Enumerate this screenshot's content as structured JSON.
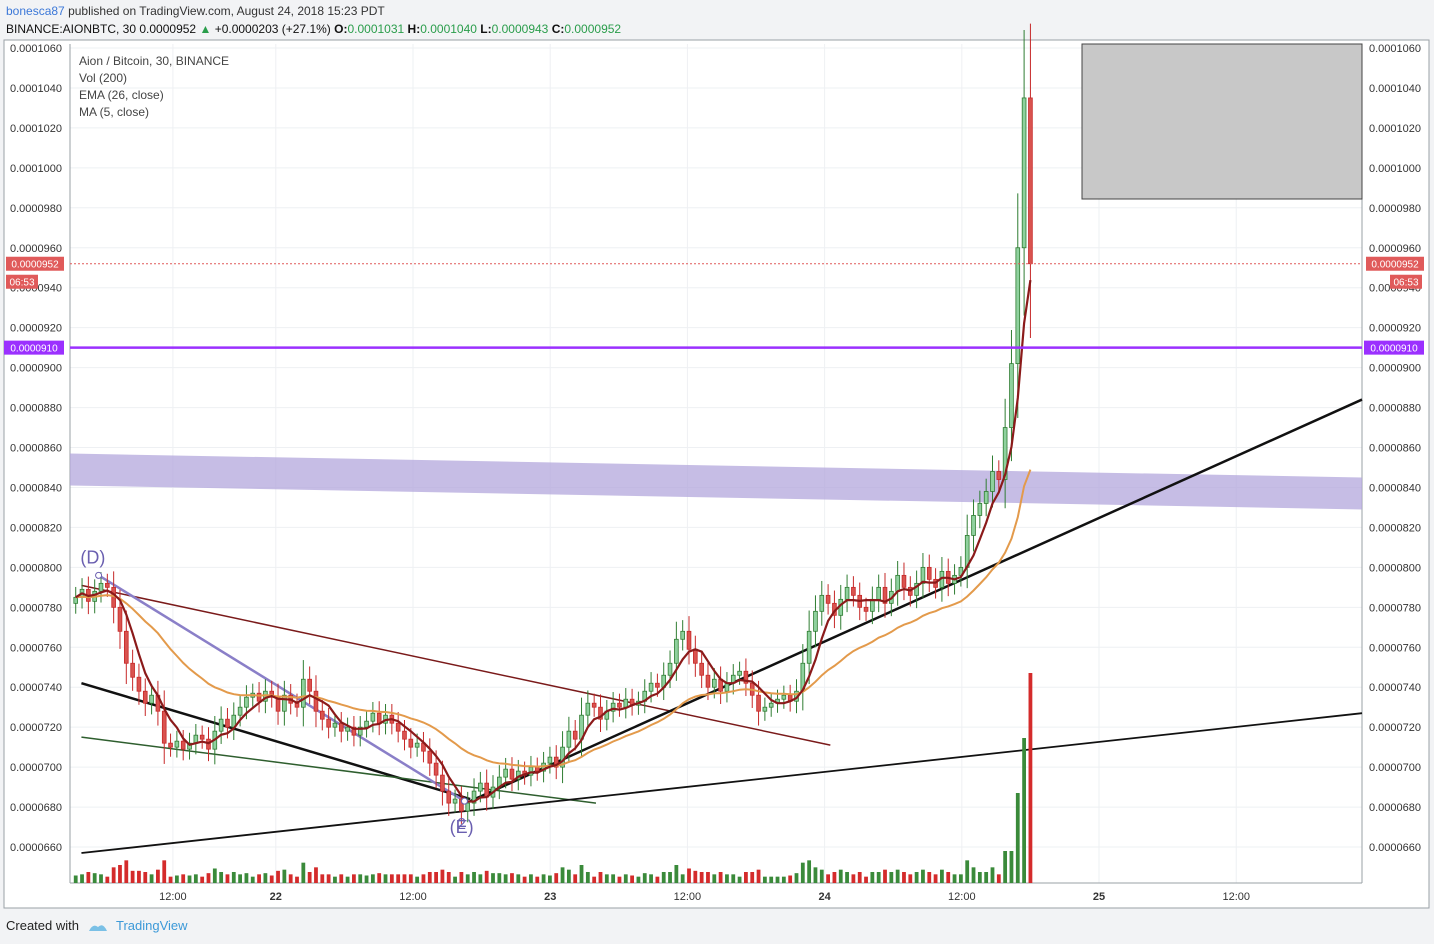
{
  "header": {
    "user": "bonesca87",
    "published": "published on TradingView.com, August 24, 2018 15:23 PDT",
    "symbol": "BINANCE:AIONBTC, 30",
    "price": "0.0000952",
    "change_arrow": "▲",
    "change": "+0.0000203 (+27.1%)",
    "o_label": "O:",
    "o": "0.0001031",
    "h_label": "H:",
    "h": "0.0001040",
    "l_label": "L:",
    "l": "0.0000943",
    "c_label": "C:",
    "c": "0.0000952"
  },
  "legend": {
    "title": "Aion / Bitcoin, 30, BINANCE",
    "vol": "Vol (200)",
    "ema": "EMA (26, close)",
    "ma": "MA (5, close)"
  },
  "footer": {
    "created": "Created with",
    "brand": "TradingView"
  },
  "chart_data": {
    "type": "candlestick",
    "ylim": [
      6.42e-05,
      0.0001062
    ],
    "y_ticks": [
      "0.0000660",
      "0.0000680",
      "0.0000700",
      "0.0000720",
      "0.0000740",
      "0.0000760",
      "0.0000780",
      "0.0000800",
      "0.0000820",
      "0.0000840",
      "0.0000860",
      "0.0000880",
      "0.0000900",
      "0.0000920",
      "0.0000940",
      "0.0000960",
      "0.0000980",
      "0.0001000",
      "0.0001020",
      "0.0001040",
      "0.0001060"
    ],
    "x_ticks": [
      {
        "label": "12:00",
        "t": -18
      },
      {
        "label": "22",
        "t": 0
      },
      {
        "label": "12:00",
        "t": 24
      },
      {
        "label": "23",
        "t": 48
      },
      {
        "label": "12:00",
        "t": 72
      },
      {
        "label": "24",
        "t": 96
      },
      {
        "label": "12:00",
        "t": 120
      },
      {
        "label": "25",
        "t": 144
      },
      {
        "label": "12:00",
        "t": 168
      }
    ],
    "x_range_hours": [
      -36,
      190
    ],
    "current_price_label": "0.0000952",
    "countdown_label": "06:53",
    "level_label": "0.0000910",
    "level_price": 9.1e-05,
    "current_price": 9.52e-05,
    "wave_labels": [
      {
        "text": "(D)",
        "t": -32,
        "y": 8.02e-05
      },
      {
        "text": "(E)",
        "t": 32.5,
        "y": 6.67e-05
      },
      {
        "text": "2",
        "t": 32.5,
        "y": 6.69e-05
      }
    ],
    "closes": [
      7.85e-05,
      7.89e-05,
      7.83e-05,
      7.88e-05,
      7.92e-05,
      7.9e-05,
      7.8e-05,
      7.68e-05,
      7.52e-05,
      7.45e-05,
      7.38e-05,
      7.32e-05,
      7.36e-05,
      7.28e-05,
      7.12e-05,
      7.1e-05,
      7.13e-05,
      7.09e-05,
      7.12e-05,
      7.16e-05,
      7.14e-05,
      7.09e-05,
      7.18e-05,
      7.24e-05,
      7.2e-05,
      7.26e-05,
      7.3e-05,
      7.35e-05,
      7.37e-05,
      7.33e-05,
      7.38e-05,
      7.35e-05,
      7.28e-05,
      7.36e-05,
      7.32e-05,
      7.3e-05,
      7.44e-05,
      7.38e-05,
      7.28e-05,
      7.24e-05,
      7.2e-05,
      7.22e-05,
      7.18e-05,
      7.2e-05,
      7.16e-05,
      7.2e-05,
      7.23e-05,
      7.27e-05,
      7.22e-05,
      7.26e-05,
      7.22e-05,
      7.18e-05,
      7.14e-05,
      7.1e-05,
      7.12e-05,
      7.08e-05,
      7.02e-05,
      6.96e-05,
      6.88e-05,
      6.82e-05,
      6.84e-05,
      6.78e-05,
      6.82e-05,
      6.88e-05,
      6.92e-05,
      6.85e-05,
      6.9e-05,
      6.95e-05,
      6.99e-05,
      6.94e-05,
      6.98e-05,
      6.96e-05,
      7e-05,
      6.98e-05,
      7.02e-05,
      7.05e-05,
      7e-05,
      7.1e-05,
      7.18e-05,
      7.14e-05,
      7.26e-05,
      7.32e-05,
      7.3e-05,
      7.24e-05,
      7.28e-05,
      7.32e-05,
      7.3e-05,
      7.34e-05,
      7.31e-05,
      7.33e-05,
      7.38e-05,
      7.42e-05,
      7.4e-05,
      7.46e-05,
      7.52e-05,
      7.64e-05,
      7.68e-05,
      7.59e-05,
      7.52e-05,
      7.46e-05,
      7.4e-05,
      7.44e-05,
      7.38e-05,
      7.42e-05,
      7.46e-05,
      7.48e-05,
      7.42e-05,
      7.36e-05,
      7.28e-05,
      7.3e-05,
      7.32e-05,
      7.34e-05,
      7.36e-05,
      7.33e-05,
      7.38e-05,
      7.52e-05,
      7.68e-05,
      7.78e-05,
      7.86e-05,
      7.82e-05,
      7.76e-05,
      7.84e-05,
      7.9e-05,
      7.86e-05,
      7.8e-05,
      7.78e-05,
      7.84e-05,
      7.9e-05,
      7.82e-05,
      7.88e-05,
      7.96e-05,
      7.9e-05,
      7.86e-05,
      7.92e-05,
      8e-05,
      7.94e-05,
      7.9e-05,
      7.98e-05,
      7.92e-05,
      7.96e-05,
      8e-05,
      8.16e-05,
      8.26e-05,
      8.32e-05,
      8.38e-05,
      8.48e-05,
      8.44e-05,
      8.7e-05,
      9.02e-05,
      9.6e-05,
      0.0001035,
      9.52e-05
    ],
    "volumes_note": "volume bars drawn as histogram; last two bars spike"
  }
}
